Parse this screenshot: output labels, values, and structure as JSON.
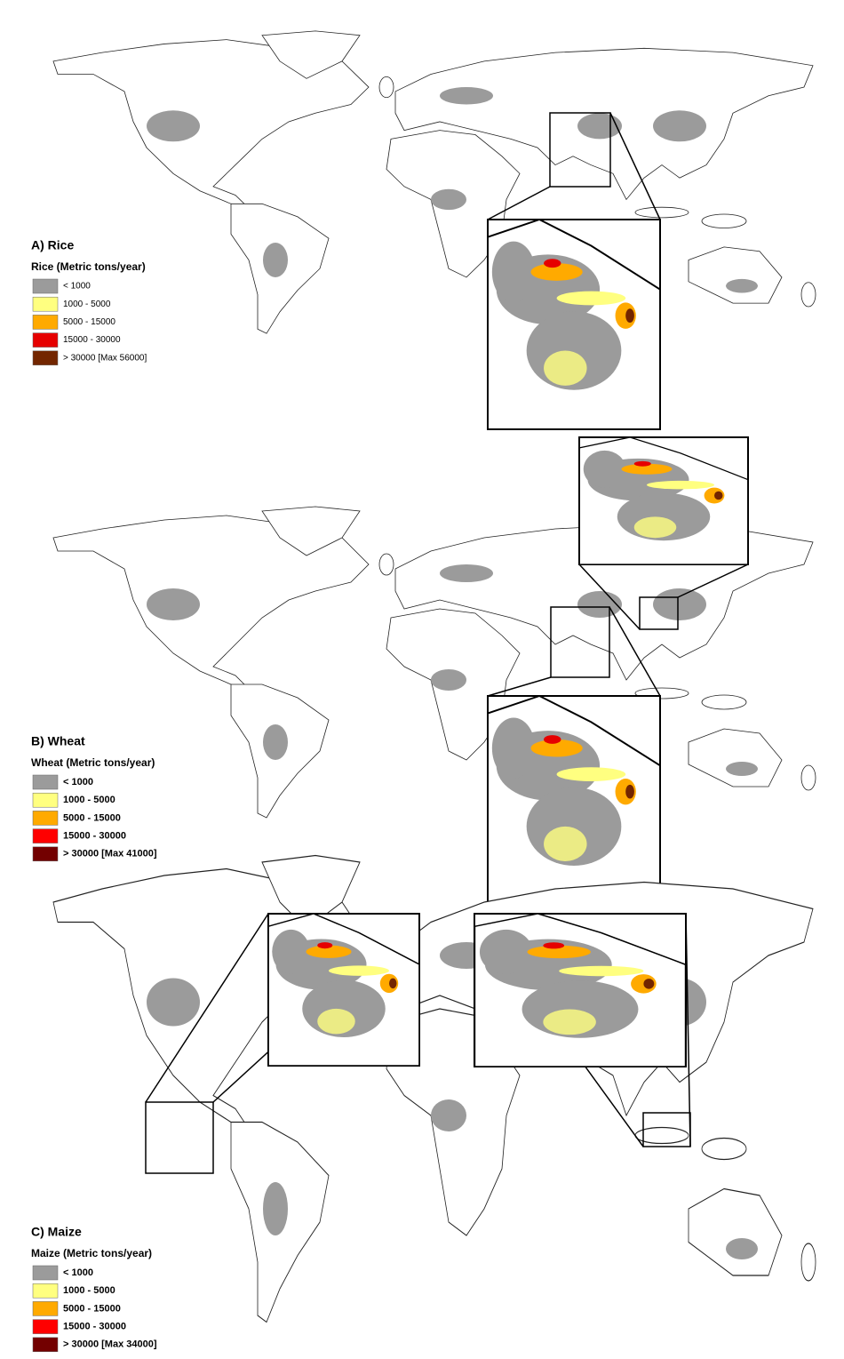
{
  "panels": [
    {
      "title": "A) Rice",
      "legend": {
        "title": "Rice (Metric tons/year)",
        "items": [
          {
            "label": "< 1000",
            "color": "#9b9b9b"
          },
          {
            "label": "1000 - 5000",
            "color": "#ffff80"
          },
          {
            "label": "5000 - 15000",
            "color": "#ffaa00"
          },
          {
            "label": "15000 - 30000",
            "color": "#e60000"
          },
          {
            "label": "> 30000 [Max 56000]",
            "color": "#732600"
          }
        ]
      }
    },
    {
      "title": "B) Wheat",
      "legend": {
        "title": "Wheat (Metric tons/year)",
        "items": [
          {
            "label": "< 1000",
            "color": "#9b9b9b"
          },
          {
            "label": "1000 - 5000",
            "color": "#ffff80"
          },
          {
            "label": "5000 - 15000",
            "color": "#ffaa00"
          },
          {
            "label": "15000 - 30000",
            "color": "#ff0000"
          },
          {
            "label": "> 30000 [Max 41000]",
            "color": "#730000"
          }
        ]
      }
    },
    {
      "title": "C) Maize",
      "legend": {
        "title": "Maize (Metric tons/year)",
        "items": [
          {
            "label": "< 1000",
            "color": "#9b9b9b"
          },
          {
            "label": "1000 - 5000",
            "color": "#ffff80"
          },
          {
            "label": "5000 - 15000",
            "color": "#ffaa00"
          },
          {
            "label": "15000 - 30000",
            "color": "#ff0000"
          },
          {
            "label": "> 30000 [Max 34000]",
            "color": "#730000"
          }
        ]
      }
    }
  ]
}
